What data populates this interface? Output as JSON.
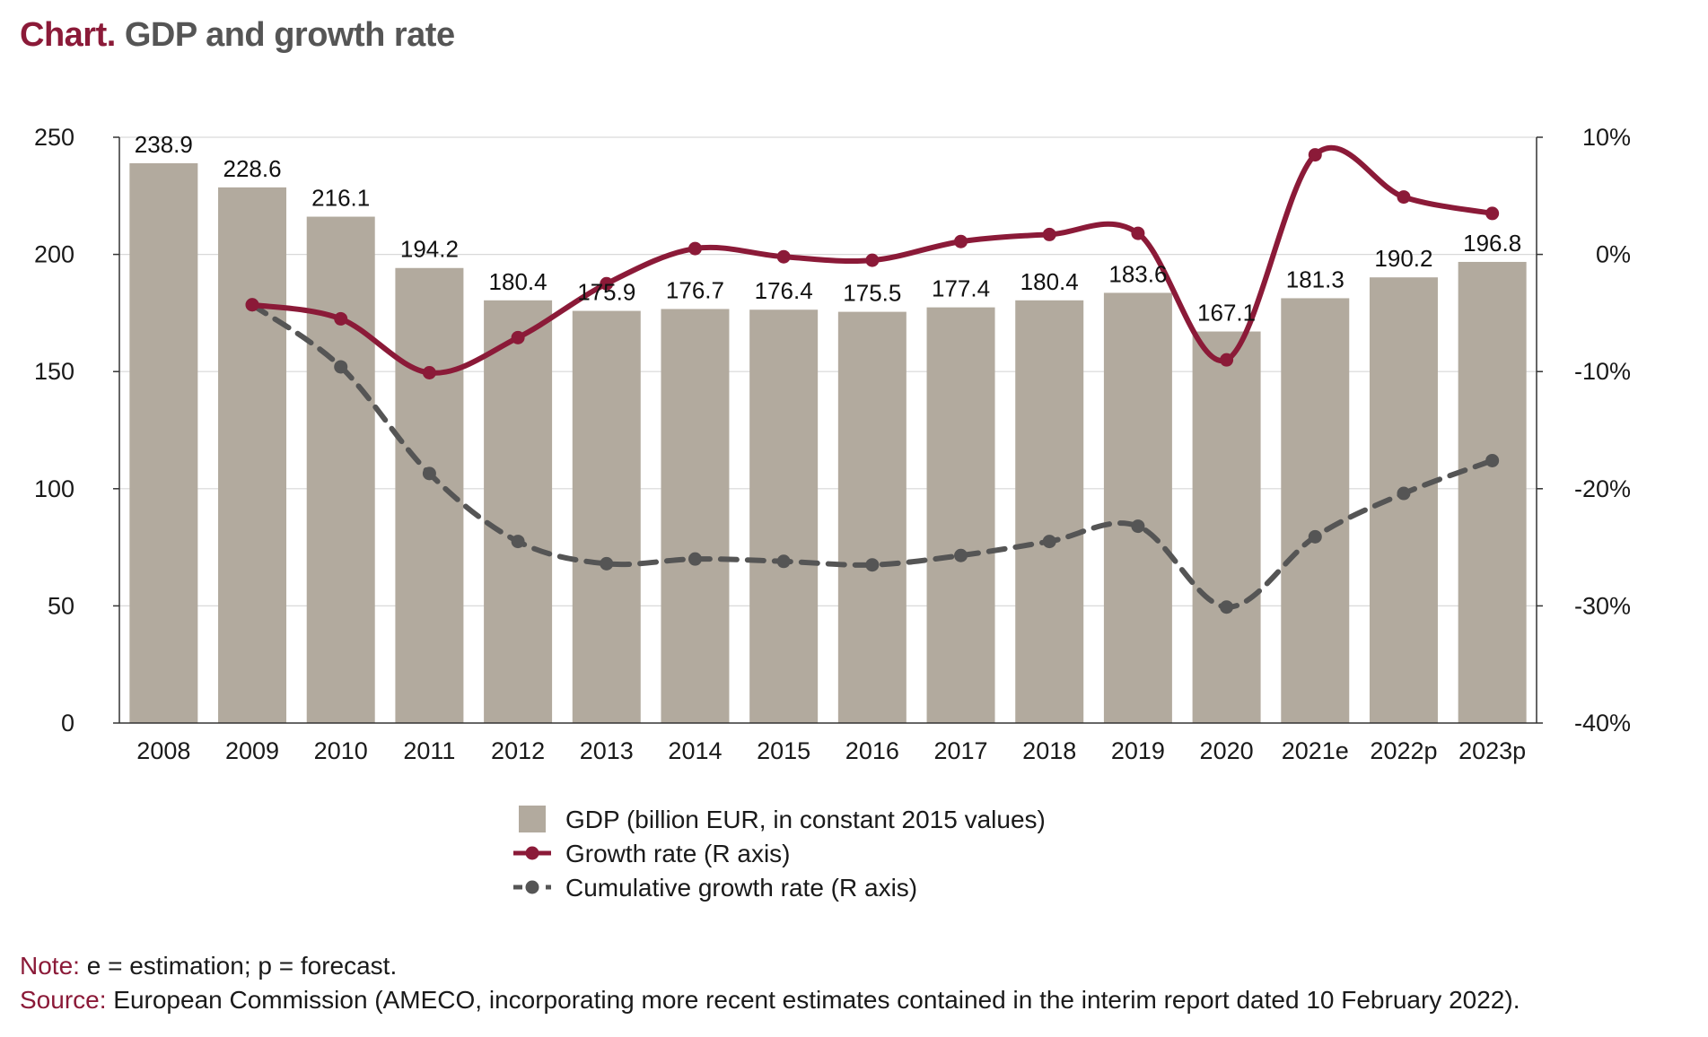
{
  "title": {
    "prefix": "Chart.",
    "text": "GDP and growth rate"
  },
  "colors": {
    "bar": "#b2aa9e",
    "growth": "#8b1a38",
    "cumulative": "#555555",
    "accent": "#8b1a38"
  },
  "chart_data": {
    "type": "bar",
    "categories": [
      "2008",
      "2009",
      "2010",
      "2011",
      "2012",
      "2013",
      "2014",
      "2015",
      "2016",
      "2017",
      "2018",
      "2019",
      "2020",
      "2021e",
      "2022p",
      "2023p"
    ],
    "left_axis": {
      "ylim": [
        0,
        250
      ],
      "ticks": [
        "0",
        "50",
        "100",
        "150",
        "200",
        "250"
      ]
    },
    "right_axis": {
      "ylim": [
        -40,
        10
      ],
      "ticks": [
        "-40%",
        "-30%",
        "-20%",
        "-10%",
        "0%",
        "10%"
      ]
    },
    "grid": true,
    "legend_position": "bottom",
    "series": [
      {
        "name": "GDP (billion EUR, in constant 2015 values)",
        "kind": "bar",
        "axis": "left",
        "values": [
          238.9,
          228.6,
          216.1,
          194.2,
          180.4,
          175.9,
          176.7,
          176.4,
          175.5,
          177.4,
          180.4,
          183.6,
          167.1,
          181.3,
          190.2,
          196.8
        ],
        "labels": [
          "238.9",
          "228.6",
          "216.1",
          "194.2",
          "180.4",
          "175.9",
          "176.7",
          "176.4",
          "175.5",
          "177.4",
          "180.4",
          "183.6",
          "167.1",
          "181.3",
          "190.2",
          "196.8"
        ]
      },
      {
        "name": "Growth rate (R axis)",
        "kind": "line",
        "axis": "right",
        "values": [
          null,
          -4.3,
          -5.5,
          -10.1,
          -7.1,
          -2.5,
          0.5,
          -0.2,
          -0.5,
          1.1,
          1.7,
          1.8,
          -9.0,
          8.5,
          4.9,
          3.5
        ]
      },
      {
        "name": "Cumulative growth rate (R axis)",
        "kind": "line",
        "axis": "right",
        "dashed": true,
        "values": [
          null,
          -4.3,
          -9.6,
          -18.7,
          -24.5,
          -26.4,
          -26.0,
          -26.2,
          -26.5,
          -25.7,
          -24.5,
          -23.2,
          -30.1,
          -24.1,
          -20.4,
          -17.6
        ]
      }
    ]
  },
  "notes": {
    "note_label": "Note:",
    "note_text": " e = estimation; p = forecast.",
    "source_label": "Source:",
    "source_text": " European Commission (AMECO, incorporating more recent estimates contained in the interim report dated 10 February 2022)."
  }
}
